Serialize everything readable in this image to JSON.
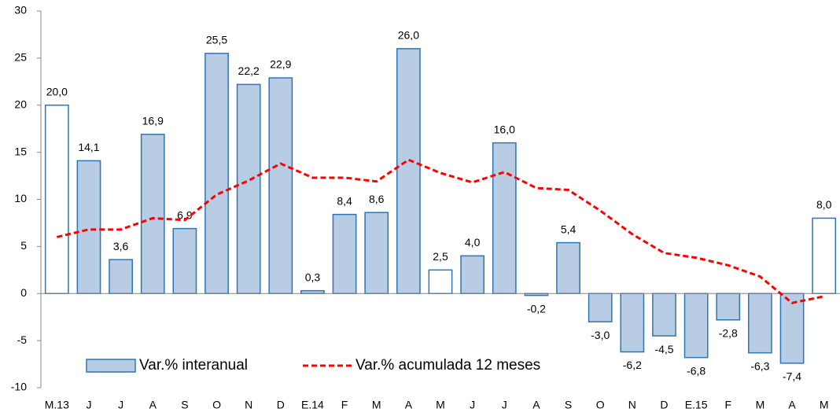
{
  "chart_data": {
    "type": "bar-line",
    "categories": [
      "M.13",
      "J",
      "J",
      "A",
      "S",
      "O",
      "N",
      "D",
      "E.14",
      "F",
      "M",
      "A",
      "M",
      "J",
      "J",
      "A",
      "S",
      "O",
      "N",
      "D",
      "E.15",
      "F",
      "M",
      "A",
      "M"
    ],
    "series": [
      {
        "name": "Var.% interanual",
        "type": "bar",
        "color": "#b8cce4",
        "stroke": "#2e75b6",
        "fills": [
          "#ffffff",
          "#b8cce4",
          "#b8cce4",
          "#b8cce4",
          "#b8cce4",
          "#b8cce4",
          "#b8cce4",
          "#b8cce4",
          "#b8cce4",
          "#b8cce4",
          "#b8cce4",
          "#b8cce4",
          "#ffffff",
          "#b8cce4",
          "#b8cce4",
          "#b8cce4",
          "#b8cce4",
          "#b8cce4",
          "#b8cce4",
          "#b8cce4",
          "#b8cce4",
          "#b8cce4",
          "#b8cce4",
          "#b8cce4",
          "#ffffff"
        ],
        "values": [
          20.0,
          14.1,
          3.6,
          16.9,
          6.9,
          25.5,
          22.2,
          22.9,
          0.3,
          8.4,
          8.6,
          26.0,
          2.5,
          4.0,
          16.0,
          -0.2,
          5.4,
          -3.0,
          -6.2,
          -4.5,
          -6.8,
          -2.8,
          -6.3,
          -7.4,
          8.0
        ],
        "value_labels": [
          "20,0",
          "14,1",
          "3,6",
          "16,9",
          "6,9",
          "25,5",
          "22,2",
          "22,9",
          "0,3",
          "8,4",
          "8,6",
          "26,0",
          "2,5",
          "4,0",
          "16,0",
          "-0,2",
          "5,4",
          "-3,0",
          "-6,2",
          "-4,5",
          "-6,8",
          "-2,8",
          "-6,3",
          "-7,4",
          "8,0"
        ]
      },
      {
        "name": "Var.% acumulada 12 meses",
        "type": "line",
        "color": "#ff0000",
        "values": [
          6.0,
          6.8,
          6.8,
          8.0,
          7.8,
          10.5,
          12.0,
          13.8,
          12.3,
          12.3,
          11.9,
          14.2,
          12.8,
          11.8,
          12.9,
          11.2,
          11.0,
          8.8,
          6.3,
          4.3,
          3.8,
          3.0,
          1.8,
          -1.0,
          -0.3
        ]
      }
    ],
    "ylim": [
      -10,
      30
    ],
    "yticks": [
      -10,
      -5,
      0,
      5,
      10,
      15,
      20,
      25,
      30
    ],
    "grid": false
  }
}
